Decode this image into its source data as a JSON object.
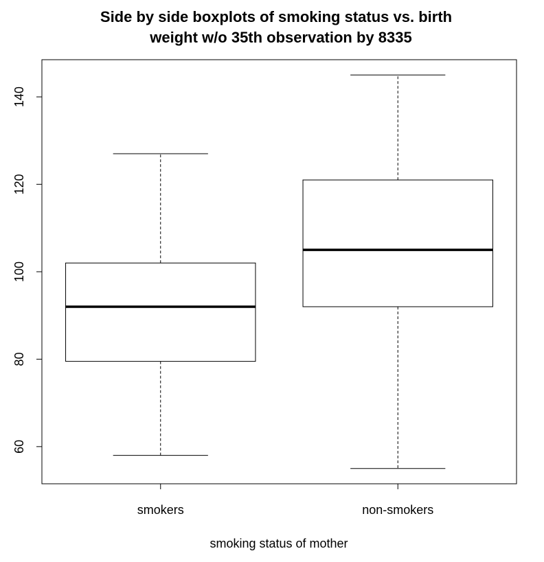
{
  "chart_data": {
    "type": "boxplot",
    "title_lines": [
      "Side by side boxplots of smoking status vs. birth",
      "weight w/o 35th observation by 8335"
    ],
    "xlabel": "smoking status of mother",
    "ylabel": "",
    "categories": [
      "smokers",
      "non-smokers"
    ],
    "ylim": [
      51.5,
      148.5
    ],
    "yticks": [
      60,
      80,
      100,
      120,
      140
    ],
    "grid": false,
    "legend": "none",
    "boxes": [
      {
        "category": "smokers",
        "whisker_low": 58,
        "q1": 79.5,
        "median": 92,
        "q3": 102,
        "whisker_high": 127
      },
      {
        "category": "non-smokers",
        "whisker_low": 55,
        "q1": 92,
        "median": 105,
        "q3": 121,
        "whisker_high": 145
      }
    ]
  }
}
